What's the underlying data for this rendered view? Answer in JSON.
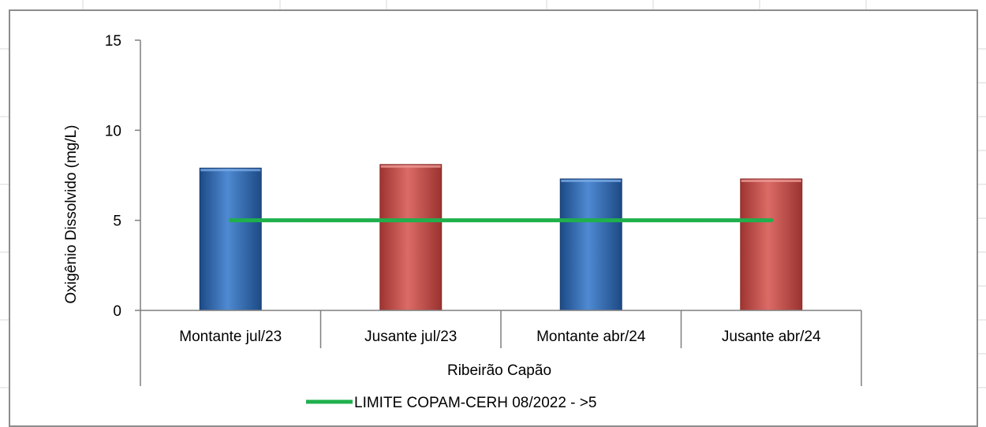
{
  "chart_data": {
    "type": "bar",
    "ylabel": "Oxigênio Dissolvido  (mg/L)",
    "ylim": [
      0,
      15
    ],
    "yticks": [
      "0",
      "5",
      "10",
      "15"
    ],
    "group_label": "Ribeirão Capão",
    "categories": [
      "Montante jul/23",
      "Jusante jul/23",
      "Montante abr/24",
      "Jusante abr/24"
    ],
    "values": [
      7.9,
      8.1,
      7.3,
      7.3
    ],
    "bar_colors": [
      "#2e67b2",
      "#c4504c",
      "#2e67b2",
      "#c4504c"
    ],
    "reference_line": {
      "name": "LIMITE COPAM-CERH 08/2022 - >5",
      "value": 5,
      "color": "#1fb04c"
    },
    "grid": false,
    "legend_position": "bottom"
  }
}
